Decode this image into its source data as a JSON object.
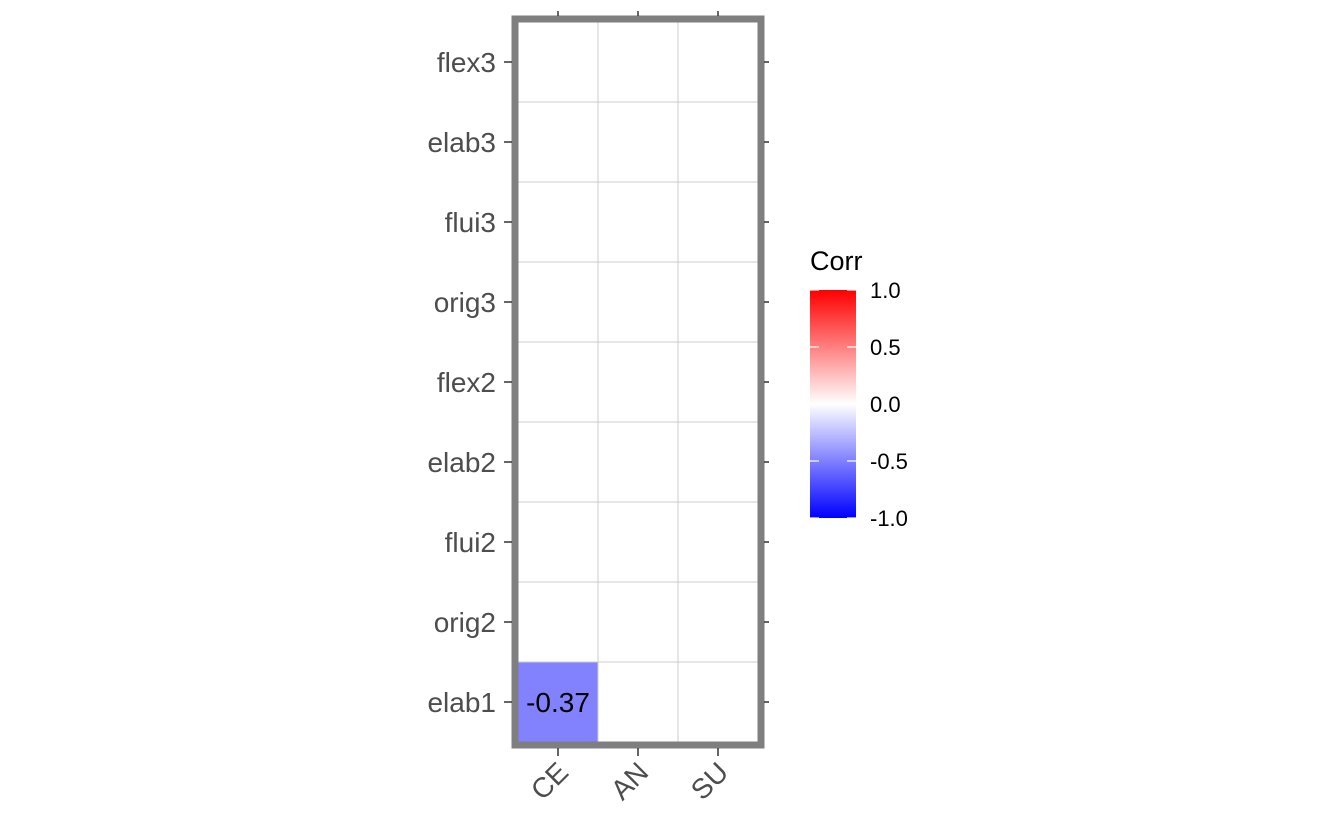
{
  "chart_data": {
    "type": "heatmap",
    "title": "",
    "xlabel": "",
    "ylabel": "",
    "x_categories": [
      "CE",
      "AN",
      "SU"
    ],
    "y_categories": [
      "elab1",
      "orig2",
      "flui2",
      "elab2",
      "flex2",
      "orig3",
      "flui3",
      "elab3",
      "flex3"
    ],
    "cells": [
      {
        "x": "CE",
        "y": "elab1",
        "value": -0.37,
        "label": "-0.37"
      }
    ],
    "grid": true,
    "legend": {
      "title": "Corr",
      "position": "right",
      "range": [
        -1.0,
        1.0
      ],
      "ticks": [
        1.0,
        0.5,
        0.0,
        -0.5,
        -1.0
      ],
      "tick_labels": [
        "1.0",
        "0.5",
        "0.0",
        "-0.5",
        "-1.0"
      ],
      "colors": {
        "low": "#0000ff",
        "mid": "#ffffff",
        "high": "#ff0000"
      }
    },
    "colors": {
      "panel_border": "#7f7f7f",
      "grid": "#cccccc",
      "empty_cell": "#ffffff"
    }
  }
}
